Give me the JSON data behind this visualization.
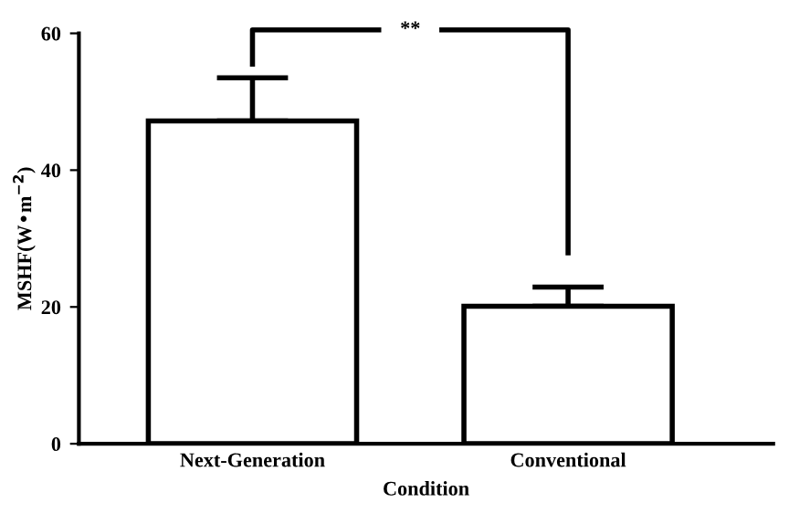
{
  "chart_data": {
    "type": "bar",
    "xlabel": "Condition",
    "ylabel": "MSHF(W•m$^{−2}$)",
    "categories": [
      "Next-Generation",
      "Conventional"
    ],
    "values": [
      47.2,
      20.1
    ],
    "errors": [
      [
        47.2,
        53.5
      ],
      [
        20.1,
        22.9
      ]
    ],
    "color": "#ffffff",
    "ylim": [
      0,
      60
    ],
    "yticks": [
      0,
      20,
      40,
      60
    ],
    "grid": false,
    "legend": false,
    "annotations": [
      "**"
    ]
  }
}
